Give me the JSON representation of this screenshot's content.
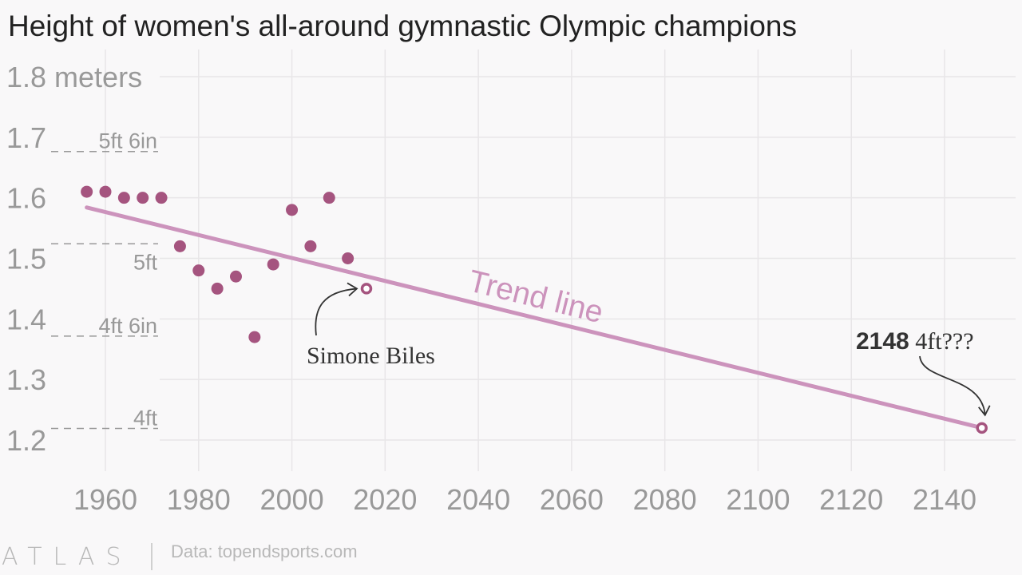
{
  "chart_data": {
    "type": "scatter",
    "title": "Height of women's all-around gymnastic Olympic champions",
    "y_unit_label": "meters",
    "xlim": [
      1950,
      2152
    ],
    "ylim": [
      1.2,
      1.8
    ],
    "x_ticks": [
      "1960",
      "1980",
      "2000",
      "2020",
      "2040",
      "2060",
      "2080",
      "2100",
      "2120",
      "2140"
    ],
    "x_tick_values": [
      1960,
      1980,
      2000,
      2020,
      2040,
      2060,
      2080,
      2100,
      2120,
      2140
    ],
    "y_ticks": [
      "1.2",
      "1.3",
      "1.4",
      "1.5",
      "1.6",
      "1.7",
      "1.8"
    ],
    "y_tick_values": [
      1.2,
      1.3,
      1.4,
      1.5,
      1.6,
      1.7,
      1.8
    ],
    "grid": true,
    "points": [
      {
        "x": 1956,
        "y": 1.61
      },
      {
        "x": 1960,
        "y": 1.61
      },
      {
        "x": 1964,
        "y": 1.6
      },
      {
        "x": 1968,
        "y": 1.6
      },
      {
        "x": 1972,
        "y": 1.6
      },
      {
        "x": 1976,
        "y": 1.52
      },
      {
        "x": 1980,
        "y": 1.48
      },
      {
        "x": 1984,
        "y": 1.45
      },
      {
        "x": 1988,
        "y": 1.47
      },
      {
        "x": 1992,
        "y": 1.37
      },
      {
        "x": 1996,
        "y": 1.49
      },
      {
        "x": 2000,
        "y": 1.58
      },
      {
        "x": 2004,
        "y": 1.52
      },
      {
        "x": 2008,
        "y": 1.6
      },
      {
        "x": 2012,
        "y": 1.5
      }
    ],
    "highlight_point": {
      "x": 2016,
      "y": 1.45,
      "label": "Simone Biles"
    },
    "projected_point": {
      "x": 2148,
      "y": 1.22,
      "label_bold": "2148",
      "label_rest": "4ft???"
    },
    "trend_line": {
      "label": "Trend line",
      "x": [
        1956,
        2148
      ],
      "y": [
        1.584,
        1.22
      ]
    },
    "reference_lines": [
      {
        "label": "5ft 6in",
        "y": 1.6764
      },
      {
        "label": "5ft",
        "y": 1.524
      },
      {
        "label": "4ft 6in",
        "y": 1.3716
      },
      {
        "label": "4ft",
        "y": 1.2192
      }
    ],
    "colors": {
      "dot": "#a5547f",
      "trend": "#cc93bc",
      "grid": "#e8e6e8"
    }
  },
  "footer": {
    "logo": "ATLAS",
    "source": "Data: topendsports.com"
  }
}
